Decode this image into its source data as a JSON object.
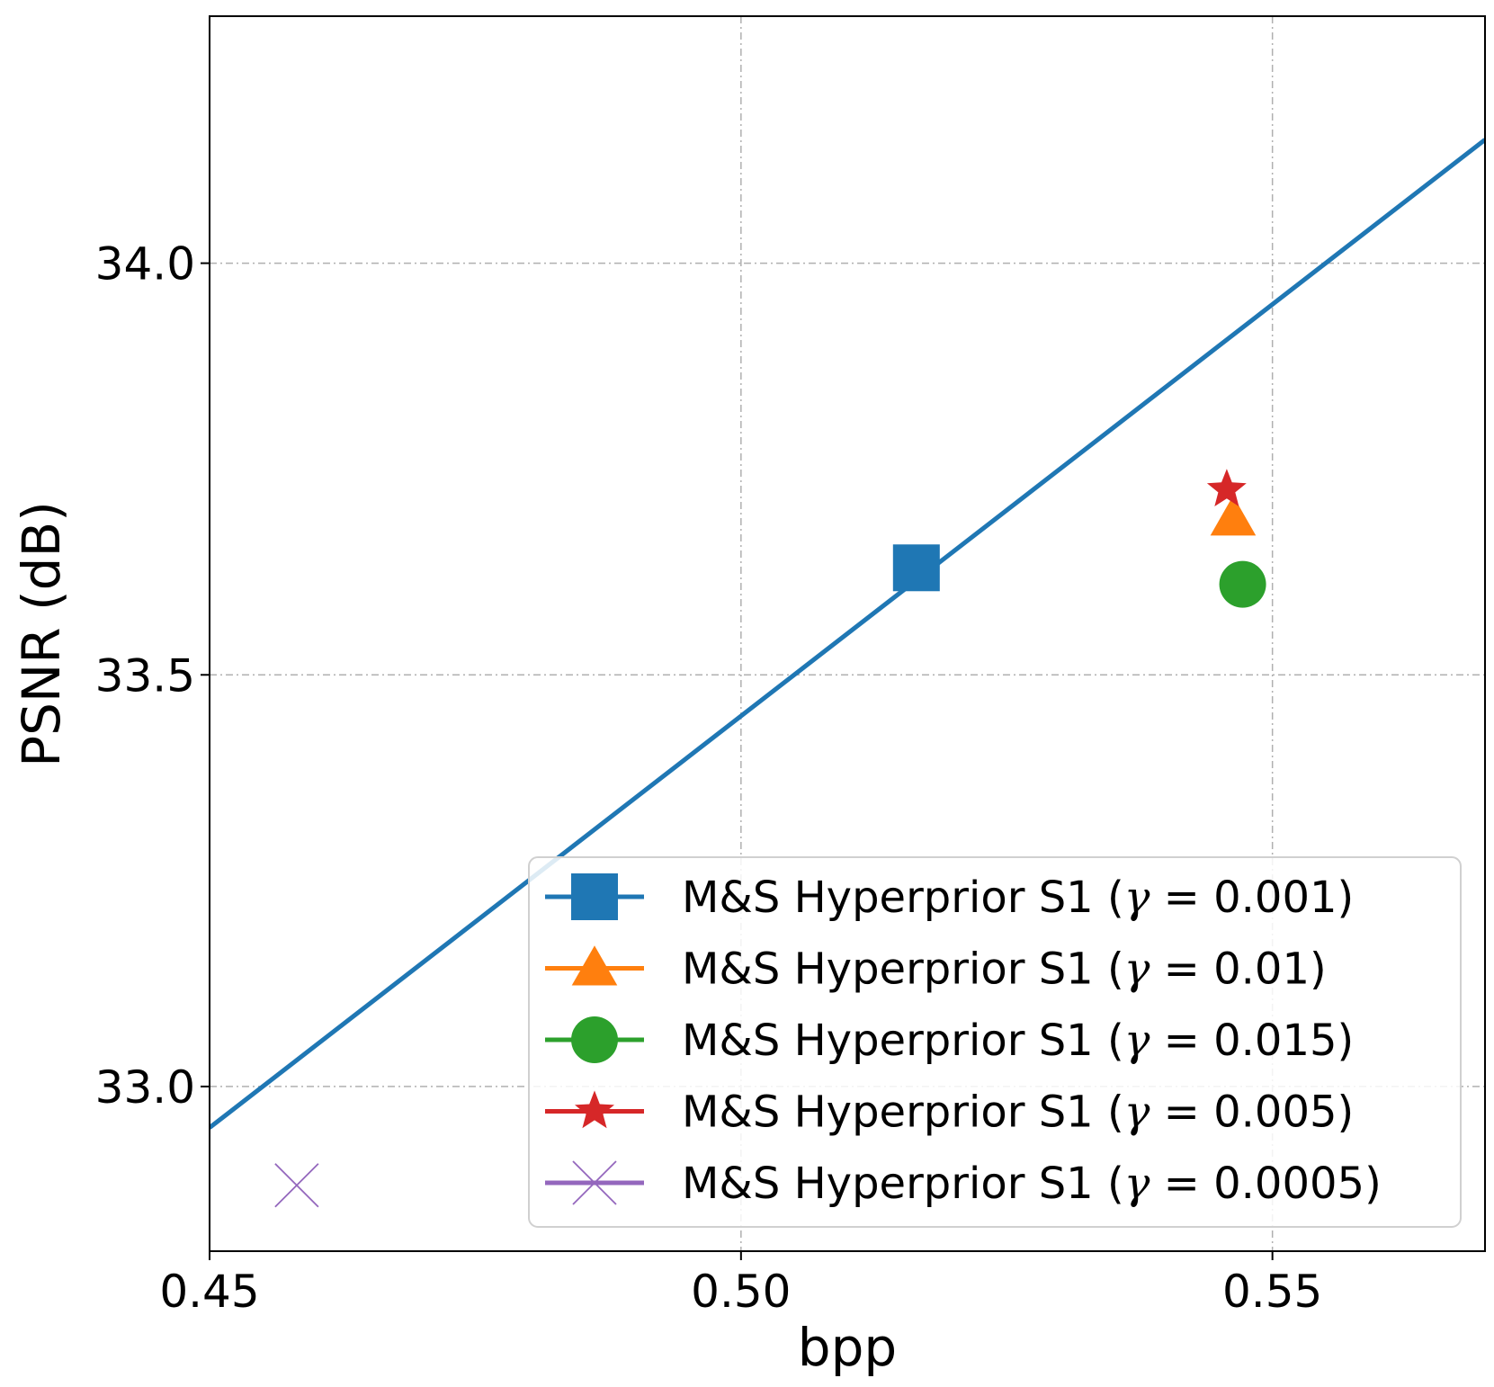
{
  "chart_data": {
    "type": "line",
    "xlabel": "bpp",
    "ylabel": "PSNR (dB)",
    "xlim": [
      0.45,
      0.57
    ],
    "ylim": [
      32.8,
      34.3
    ],
    "xticks": [
      0.45,
      0.5,
      0.55
    ],
    "xtick_labels": [
      "0.45",
      "0.50",
      "0.55"
    ],
    "yticks": [
      33.0,
      33.5,
      34.0
    ],
    "ytick_labels": [
      "33.0",
      "33.5",
      "34.0"
    ],
    "grid": true,
    "legend_location": "lower-right",
    "series": [
      {
        "name": "M&S Hyperprior S1 (γ = 0.001)",
        "gamma_prefix": "M&S Hyperprior S1 (",
        "gamma_value": "0.001)",
        "color": "#1f77b4",
        "marker": "square",
        "line": [
          [
            0.45,
            32.95
          ],
          [
            0.57,
            34.15
          ]
        ],
        "points": [
          [
            0.5165,
            33.63
          ]
        ]
      },
      {
        "name": "M&S Hyperprior S1 (γ = 0.01)",
        "gamma_prefix": "M&S Hyperprior S1 (",
        "gamma_value": "0.01)",
        "color": "#ff7f0e",
        "marker": "triangle",
        "points": [
          [
            0.5463,
            33.69
          ]
        ]
      },
      {
        "name": "M&S Hyperprior S1 (γ = 0.015)",
        "gamma_prefix": "M&S Hyperprior S1 (",
        "gamma_value": "0.015)",
        "color": "#2ca02c",
        "marker": "circle",
        "points": [
          [
            0.5472,
            33.61
          ]
        ]
      },
      {
        "name": "M&S Hyperprior S1 (γ = 0.005)",
        "gamma_prefix": "M&S Hyperprior S1 (",
        "gamma_value": "0.005)",
        "color": "#d62728",
        "marker": "star",
        "points": [
          [
            0.5457,
            33.725
          ]
        ]
      },
      {
        "name": "M&S Hyperprior S1 (γ = 0.0005)",
        "gamma_prefix": "M&S Hyperprior S1 (",
        "gamma_value": "0.0005)",
        "color": "#9467bd",
        "marker": "x",
        "points": [
          [
            0.4582,
            32.88
          ]
        ]
      }
    ]
  }
}
